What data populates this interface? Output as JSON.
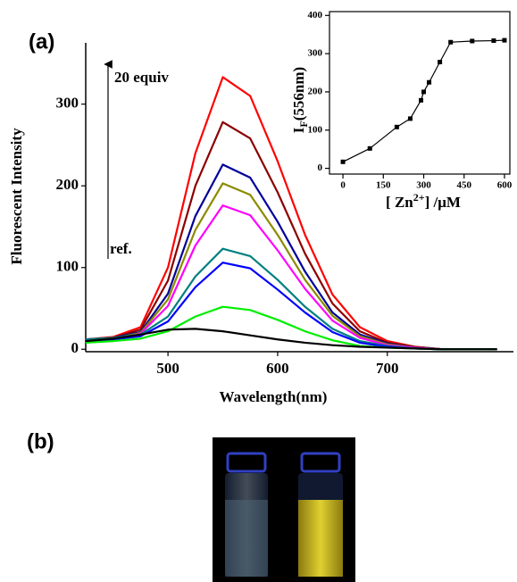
{
  "chart_data": [
    {
      "type": "line",
      "panel_label": "(a)",
      "xlabel": "Wavelength(nm)",
      "ylabel": "Fluorescent Intensity",
      "annotations": [
        "20 equiv",
        "ref."
      ],
      "x": [
        425,
        450,
        475,
        500,
        525,
        550,
        575,
        600,
        625,
        650,
        675,
        700,
        725,
        750,
        775,
        800
      ],
      "xlim": [
        425,
        815
      ],
      "ylim": [
        -3,
        375
      ],
      "xticks": [
        500,
        600,
        700
      ],
      "yticks": [
        0,
        100,
        200,
        300
      ],
      "series": [
        {
          "color": "#ff0000",
          "values": [
            12,
            15,
            27,
            100,
            240,
            333,
            310,
            230,
            140,
            67,
            27,
            10,
            3,
            0,
            0,
            0
          ]
        },
        {
          "color": "#8b0000",
          "values": [
            12,
            14,
            24,
            84,
            200,
            278,
            258,
            192,
            117,
            56,
            22,
            8,
            3,
            0,
            0,
            0
          ]
        },
        {
          "color": "#000099",
          "values": [
            12,
            14,
            21,
            68,
            163,
            226,
            210,
            156,
            95,
            45,
            18,
            7,
            2,
            0,
            0,
            0
          ]
        },
        {
          "color": "#8b8b00",
          "values": [
            11,
            13,
            20,
            61,
            146,
            203,
            189,
            140,
            85,
            41,
            16,
            6,
            2,
            0,
            0,
            0
          ]
        },
        {
          "color": "#ff00ff",
          "values": [
            10,
            12,
            19,
            53,
            127,
            176,
            164,
            121,
            74,
            35,
            14,
            5,
            2,
            0,
            0,
            0
          ]
        },
        {
          "color": "#008080",
          "values": [
            12,
            14,
            18,
            40,
            89,
            123,
            114,
            85,
            52,
            25,
            10,
            4,
            1,
            0,
            0,
            0
          ]
        },
        {
          "color": "#0000ff",
          "values": [
            10,
            12,
            16,
            34,
            76,
            106,
            99,
            73,
            45,
            21,
            8,
            3,
            1,
            0,
            0,
            0
          ]
        },
        {
          "color": "#00ee00",
          "values": [
            8,
            10,
            13,
            22,
            40,
            52,
            48,
            36,
            22,
            11,
            4,
            2,
            1,
            0,
            0,
            0
          ]
        },
        {
          "color": "#000000",
          "values": [
            10,
            13,
            18,
            24,
            25,
            22,
            17,
            12,
            8,
            5,
            3,
            2,
            1,
            0,
            0,
            0
          ]
        }
      ]
    },
    {
      "type": "line",
      "inset": true,
      "xlabel_parts": [
        "[ Zn",
        "2+",
        "] /μM"
      ],
      "ylabel_parts": [
        "I",
        "F",
        "(556nm)"
      ],
      "x": [
        0,
        100,
        200,
        250,
        290,
        300,
        320,
        360,
        400,
        480,
        560,
        600
      ],
      "values": [
        17,
        52,
        108,
        130,
        178,
        200,
        225,
        278,
        330,
        333,
        334,
        335
      ],
      "color": "#000000",
      "xlim": [
        -50,
        620
      ],
      "ylim": [
        -15,
        410
      ],
      "xticks": [
        0,
        150,
        300,
        450,
        600
      ],
      "yticks": [
        0,
        100,
        200,
        300,
        400
      ]
    },
    {
      "type": "image",
      "panel_label": "(b)"
    }
  ]
}
